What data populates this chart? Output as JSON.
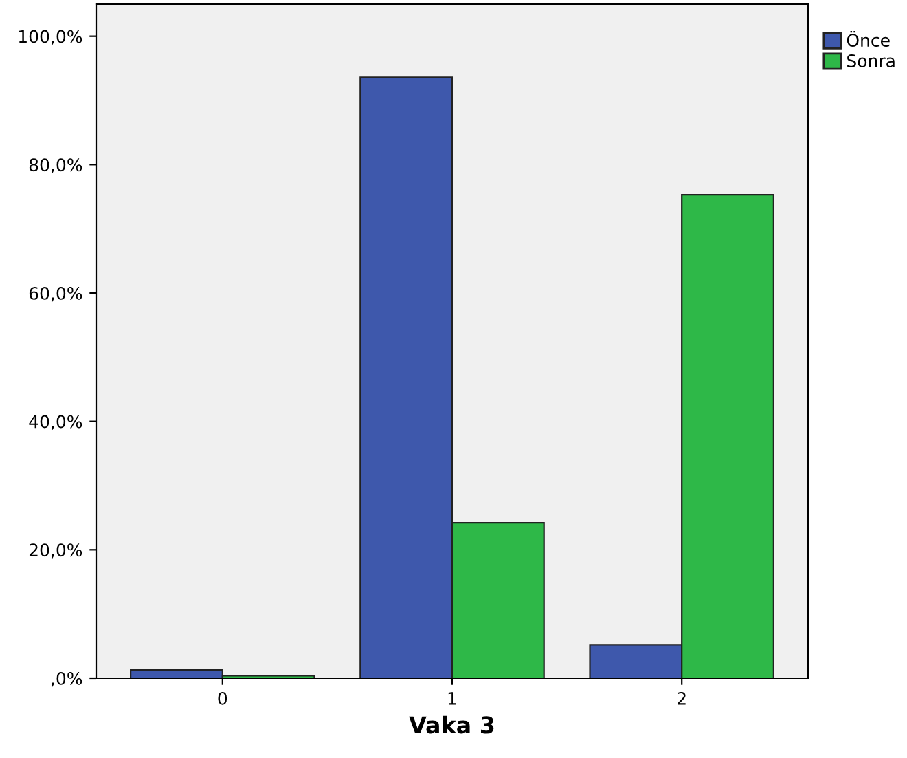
{
  "chart_data": {
    "type": "bar",
    "xlabel": "Vaka 3",
    "categories": [
      "0",
      "1",
      "2"
    ],
    "series": [
      {
        "name": "Önce",
        "color": "#3e58ac",
        "values": [
          1.3,
          93.6,
          5.2
        ]
      },
      {
        "name": "Sonra",
        "color": "#2eb848",
        "values": [
          0.4,
          24.2,
          75.3
        ]
      }
    ],
    "ylim": [
      0,
      105
    ],
    "yticks": [
      {
        "value": 0,
        "label": ",0%"
      },
      {
        "value": 20,
        "label": "20,0%"
      },
      {
        "value": 40,
        "label": "40,0%"
      },
      {
        "value": 60,
        "label": "60,0%"
      },
      {
        "value": 80,
        "label": "80,0%"
      },
      {
        "value": 100,
        "label": "100,0%"
      }
    ],
    "grid": false,
    "legend": "top right"
  }
}
